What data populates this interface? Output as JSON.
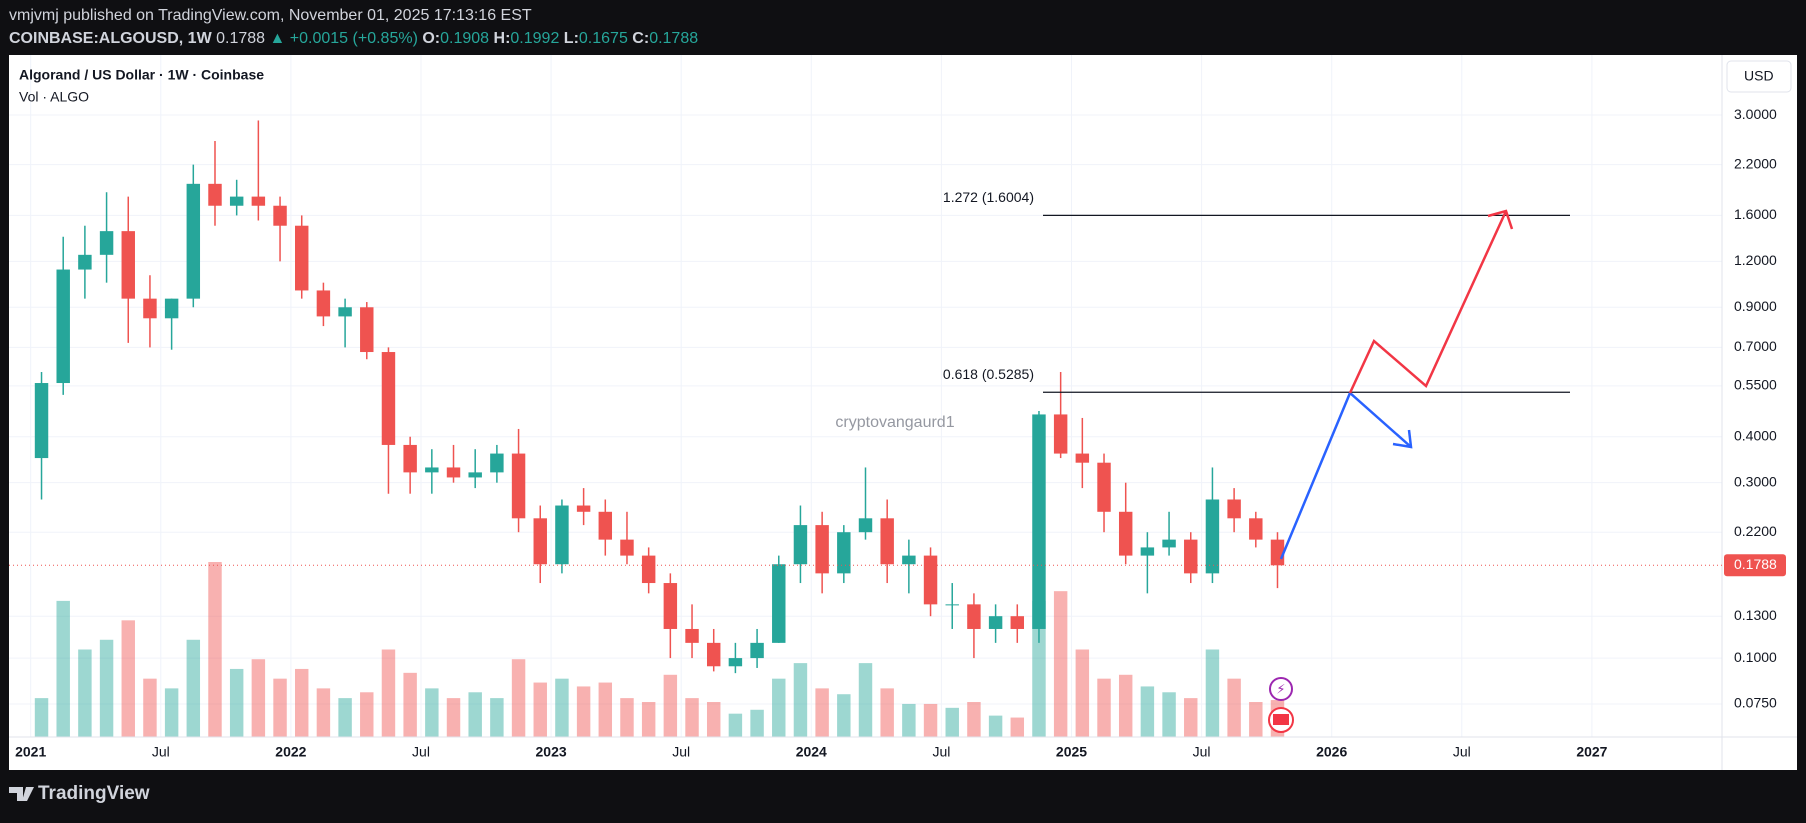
{
  "header": {
    "published": "vmjvmj published on TradingView.com, November 01, 2025 17:13:16 EST",
    "quote": [
      "COINBASE:ALGOUSD, 1W",
      "0.1788",
      "▲ +0.0015 (+0.85%)",
      "O:",
      "0.1908",
      "H:",
      "0.1992",
      "L:",
      "0.1675",
      "C:",
      "0.1788"
    ]
  },
  "footer": {
    "brand": "TradingView"
  },
  "chart_data": {
    "type": "candlestick",
    "title": "Algorand / US Dollar · 1W · Coinbase",
    "volume_label": "Vol · ALGO",
    "currency": "USD",
    "watermark": "cryptovangaurd1",
    "x": [
      "2021-01",
      "2021-02",
      "2021-03",
      "2021-04",
      "2021-05",
      "2021-06",
      "2021-07",
      "2021-08",
      "2021-09",
      "2021-10",
      "2021-11",
      "2021-12",
      "2022-01",
      "2022-02",
      "2022-03",
      "2022-04",
      "2022-05",
      "2022-06",
      "2022-07",
      "2022-08",
      "2022-09",
      "2022-10",
      "2022-11",
      "2022-12",
      "2023-01",
      "2023-02",
      "2023-03",
      "2023-04",
      "2023-05",
      "2023-06",
      "2023-07",
      "2023-08",
      "2023-09",
      "2023-10",
      "2023-11",
      "2023-12",
      "2024-01",
      "2024-02",
      "2024-03",
      "2024-04",
      "2024-05",
      "2024-06",
      "2024-07",
      "2024-08",
      "2024-09",
      "2024-10",
      "2024-11",
      "2024-12",
      "2025-01",
      "2025-02",
      "2025-03",
      "2025-04",
      "2025-05",
      "2025-06",
      "2025-07",
      "2025-08",
      "2025-09",
      "2025-10"
    ],
    "open": [
      0.35,
      0.56,
      1.14,
      1.25,
      1.45,
      0.95,
      0.84,
      0.95,
      1.95,
      1.7,
      1.8,
      1.7,
      1.5,
      1.0,
      0.85,
      0.9,
      0.68,
      0.38,
      0.32,
      0.33,
      0.31,
      0.32,
      0.36,
      0.24,
      0.18,
      0.26,
      0.25,
      0.21,
      0.19,
      0.16,
      0.12,
      0.11,
      0.095,
      0.1,
      0.11,
      0.18,
      0.23,
      0.17,
      0.22,
      0.24,
      0.18,
      0.19,
      0.14,
      0.14,
      0.12,
      0.13,
      0.12,
      0.46,
      0.36,
      0.34,
      0.25,
      0.19,
      0.2,
      0.21,
      0.17,
      0.27,
      0.24,
      0.21
    ],
    "high": [
      0.6,
      1.4,
      1.5,
      1.85,
      1.8,
      1.1,
      0.95,
      2.2,
      2.55,
      2.0,
      2.9,
      1.8,
      1.6,
      1.05,
      0.95,
      0.93,
      0.7,
      0.4,
      0.37,
      0.38,
      0.37,
      0.38,
      0.42,
      0.26,
      0.27,
      0.29,
      0.27,
      0.25,
      0.2,
      0.17,
      0.14,
      0.12,
      0.11,
      0.12,
      0.19,
      0.26,
      0.25,
      0.23,
      0.33,
      0.27,
      0.21,
      0.2,
      0.16,
      0.15,
      0.14,
      0.14,
      0.47,
      0.6,
      0.45,
      0.36,
      0.3,
      0.22,
      0.25,
      0.22,
      0.33,
      0.29,
      0.25,
      0.22
    ],
    "low": [
      0.27,
      0.52,
      0.95,
      1.05,
      0.72,
      0.7,
      0.69,
      0.9,
      1.5,
      1.6,
      1.55,
      1.2,
      0.95,
      0.8,
      0.7,
      0.65,
      0.28,
      0.28,
      0.28,
      0.3,
      0.29,
      0.3,
      0.22,
      0.16,
      0.17,
      0.23,
      0.19,
      0.18,
      0.15,
      0.1,
      0.1,
      0.092,
      0.091,
      0.094,
      0.11,
      0.16,
      0.15,
      0.16,
      0.21,
      0.16,
      0.15,
      0.13,
      0.12,
      0.1,
      0.11,
      0.11,
      0.11,
      0.35,
      0.29,
      0.22,
      0.18,
      0.15,
      0.19,
      0.16,
      0.16,
      0.22,
      0.2,
      0.155
    ],
    "close": [
      0.56,
      1.14,
      1.25,
      1.45,
      0.95,
      0.84,
      0.95,
      1.95,
      1.7,
      1.8,
      1.7,
      1.5,
      1.0,
      0.85,
      0.9,
      0.68,
      0.38,
      0.32,
      0.33,
      0.31,
      0.32,
      0.36,
      0.24,
      0.18,
      0.26,
      0.25,
      0.21,
      0.19,
      0.16,
      0.12,
      0.11,
      0.095,
      0.1,
      0.11,
      0.18,
      0.23,
      0.17,
      0.22,
      0.24,
      0.18,
      0.19,
      0.14,
      0.14,
      0.12,
      0.13,
      0.12,
      0.46,
      0.36,
      0.34,
      0.25,
      0.19,
      0.2,
      0.21,
      0.17,
      0.27,
      0.24,
      0.21,
      0.1788
    ],
    "volume": [
      200,
      700,
      450,
      500,
      600,
      300,
      250,
      500,
      900,
      350,
      400,
      300,
      350,
      250,
      200,
      230,
      450,
      330,
      250,
      200,
      230,
      200,
      400,
      280,
      300,
      260,
      280,
      200,
      180,
      320,
      200,
      180,
      120,
      140,
      300,
      380,
      250,
      220,
      380,
      250,
      170,
      170,
      150,
      180,
      110,
      100,
      700,
      750,
      450,
      300,
      320,
      260,
      230,
      200,
      450,
      300,
      180,
      190
    ],
    "up_color": "#26a69a",
    "down_color": "#ef5350",
    "log_scale": true,
    "grid": true,
    "xlim": [
      "2020-12",
      "2027-07"
    ],
    "xticks": [
      {
        "value": "2021-01",
        "label": "2021"
      },
      {
        "value": "2021-07",
        "label": "Jul"
      },
      {
        "value": "2022-01",
        "label": "2022"
      },
      {
        "value": "2022-07",
        "label": "Jul"
      },
      {
        "value": "2023-01",
        "label": "2023"
      },
      {
        "value": "2023-07",
        "label": "Jul"
      },
      {
        "value": "2024-01",
        "label": "2024"
      },
      {
        "value": "2024-07",
        "label": "Jul"
      },
      {
        "value": "2025-01",
        "label": "2025"
      },
      {
        "value": "2025-07",
        "label": "Jul"
      },
      {
        "value": "2026-01",
        "label": "2026"
      },
      {
        "value": "2026-07",
        "label": "Jul"
      },
      {
        "value": "2027-01",
        "label": "2027"
      }
    ],
    "ylim": [
      0.061,
      4.37
    ],
    "yticks": [
      {
        "value": 3,
        "label": "3.0000"
      },
      {
        "value": 2.2,
        "label": "2.2000"
      },
      {
        "value": 1.6,
        "label": "1.6000"
      },
      {
        "value": 1.2,
        "label": "1.2000"
      },
      {
        "value": 0.9,
        "label": "0.9000"
      },
      {
        "value": 0.7,
        "label": "0.7000"
      },
      {
        "value": 0.55,
        "label": "0.5500"
      },
      {
        "value": 0.4,
        "label": "0.4000"
      },
      {
        "value": 0.3,
        "label": "0.3000"
      },
      {
        "value": 0.22,
        "label": "0.2200"
      },
      {
        "value": 0.13,
        "label": "0.1300"
      },
      {
        "value": 0.1,
        "label": "0.1000"
      },
      {
        "value": 0.075,
        "label": "0.0750"
      }
    ],
    "last_price": 0.1788,
    "levels": [
      {
        "label": "1.272 (1.6004)",
        "value": 1.6004
      },
      {
        "label": "0.618 (0.5285)",
        "value": 0.5285
      }
    ]
  }
}
